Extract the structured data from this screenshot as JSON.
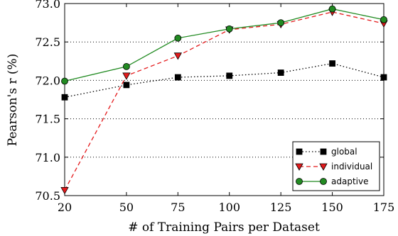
{
  "chart_data": {
    "type": "line",
    "xlabel": "# of Training Pairs per Dataset",
    "ylabel": "Pearson's r (%)",
    "x": [
      20,
      50,
      75,
      100,
      125,
      150,
      175
    ],
    "xlim": [
      20,
      175
    ],
    "ylim": [
      70.5,
      73.0
    ],
    "x_ticks": [
      "20",
      "50",
      "75",
      "100",
      "125",
      "150",
      "175"
    ],
    "y_ticks": [
      "70.5",
      "71.0",
      "71.5",
      "72.0",
      "72.5",
      "73.0"
    ],
    "y_tick_values": [
      70.5,
      71.0,
      71.5,
      72.0,
      72.5,
      73.0
    ],
    "grid": "horizontal-dotted",
    "legend_position": "bottom-right",
    "series": [
      {
        "name": "global",
        "values": [
          71.78,
          71.94,
          72.04,
          72.06,
          72.1,
          72.22,
          72.04
        ],
        "color": "#000000",
        "marker": "square",
        "line_style": "dotted"
      },
      {
        "name": "individual",
        "values": [
          70.57,
          72.06,
          72.32,
          72.66,
          72.73,
          72.89,
          72.74
        ],
        "color": "#e41a1c",
        "marker": "triangle-down",
        "line_style": "dashed"
      },
      {
        "name": "adaptive",
        "values": [
          71.99,
          72.18,
          72.55,
          72.67,
          72.75,
          72.93,
          72.79
        ],
        "color": "#228b22",
        "marker": "circle",
        "line_style": "solid"
      }
    ]
  }
}
